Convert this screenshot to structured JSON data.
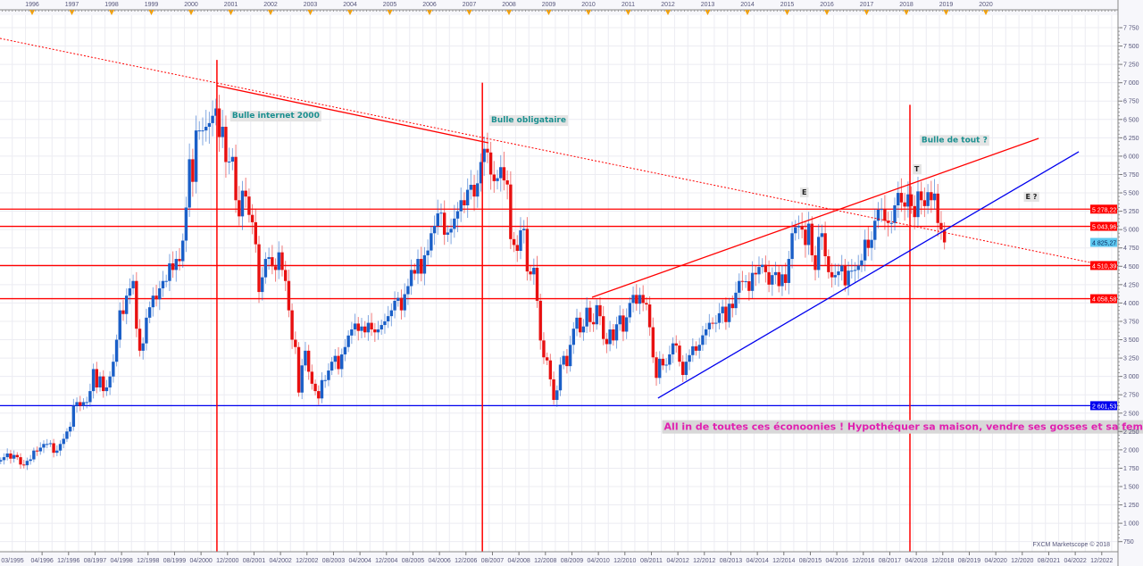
{
  "chart_data": {
    "type": "candlestick",
    "interval": "monthly",
    "start_month": "1995-03",
    "closes": [
      1860,
      1900,
      1950,
      1880,
      1930,
      1900,
      1800,
      1790,
      1850,
      1870,
      1990,
      1980,
      2030,
      2080,
      2080,
      2090,
      1960,
      1990,
      2080,
      2150,
      2250,
      2315,
      2600,
      2650,
      2600,
      2650,
      2650,
      2800,
      3100,
      2850,
      3000,
      2800,
      2850,
      2999,
      3200,
      3500,
      3900,
      3850,
      4100,
      4200,
      4300,
      3650,
      3350,
      3450,
      3800,
      3942,
      4100,
      4050,
      4200,
      4300,
      4300,
      4540,
      4450,
      4600,
      4570,
      4850,
      5300,
      5958,
      5650,
      6350,
      6350,
      6350,
      6400,
      6450,
      6550,
      6650,
      6260,
      6400,
      5920,
      5926,
      5990,
      5400,
      5180,
      5530,
      5450,
      5200,
      5100,
      4800,
      4150,
      4350,
      4600,
      4624,
      4500,
      4450,
      4690,
      4450,
      4300,
      3900,
      3500,
      3400,
      2780,
      3150,
      3350,
      3064,
      2900,
      2800,
      2700,
      2950,
      2950,
      3080,
      3200,
      3280,
      3100,
      3300,
      3400,
      3557,
      3640,
      3720,
      3620,
      3680,
      3600,
      3730,
      3640,
      3600,
      3640,
      3700,
      3750,
      3821,
      3900,
      4030,
      4070,
      3900,
      4120,
      4230,
      4450,
      4400,
      4600,
      4400,
      4650,
      4715,
      4950,
      5050,
      5220,
      5230,
      4930,
      4960,
      5010,
      5150,
      5250,
      5400,
      5330,
      5542,
      5610,
      5450,
      5630,
      5920,
      6100,
      6050,
      5750,
      5660,
      5700,
      5850,
      5670,
      5614,
      4870,
      4790,
      4710,
      4990,
      5010,
      4430,
      4390,
      4480,
      4030,
      3490,
      3260,
      3218,
      2960,
      2680,
      2810,
      3160,
      3280,
      3140,
      3430,
      3650,
      3800,
      3600,
      3680,
      3936,
      3740,
      3710,
      3970,
      3820,
      3510,
      3440,
      3640,
      3490,
      3710,
      3830,
      3610,
      3805,
      4000,
      4110,
      3990,
      4110,
      4000,
      3980,
      3670,
      3260,
      2980,
      3240,
      3150,
      3160,
      3300,
      3450,
      3420,
      3200,
      3020,
      3200,
      3290,
      3410,
      3350,
      3430,
      3560,
      3641,
      3730,
      3720,
      3730,
      3860,
      3950,
      3740,
      3990,
      3930,
      4140,
      4300,
      4290,
      4296,
      4165,
      4410,
      4390,
      4490,
      4520,
      4420,
      4250,
      4380,
      4420,
      4230,
      4390,
      4273,
      4600,
      4950,
      5030,
      5050,
      5000,
      4790,
      5080,
      4650,
      4450,
      4900,
      4950,
      4637,
      4420,
      4350,
      4380,
      4430,
      4510,
      4240,
      4440,
      4440,
      4450,
      4510,
      4580,
      4862,
      4750,
      4860,
      5120,
      5270,
      5280,
      5120,
      5090,
      5090,
      5330,
      5500,
      5370,
      5313,
      5480,
      5320,
      5170,
      5520,
      5400,
      5320,
      5510,
      5400,
      5490,
      5090,
      5000,
      4825.27
    ],
    "y_range": [
      750,
      7750
    ],
    "y_tick_step": 250,
    "y_ticks": [
      "750",
      "1 000",
      "1 250",
      "1 500",
      "1 750",
      "2 000",
      "2 250",
      "2 500",
      "2 750",
      "3 000",
      "3 250",
      "3 500",
      "3 750",
      "4 000",
      "4 250",
      "4 500",
      "4 750",
      "5 000",
      "5 250",
      "5 500",
      "5 750",
      "6 000",
      "6 250",
      "6 500",
      "6 750",
      "7 000",
      "7 250",
      "7 500",
      "7 750"
    ],
    "top_year_ticks": [
      "1996",
      "1997",
      "1998",
      "1999",
      "2000",
      "2001",
      "2002",
      "2003",
      "2004",
      "2005",
      "2006",
      "2007",
      "2008",
      "2009",
      "2010",
      "2011",
      "2012",
      "2013",
      "2014",
      "2015",
      "2016",
      "2017",
      "2018",
      "2019",
      "2020"
    ],
    "bottom_date_ticks": [
      "03/1995",
      "04/1996",
      "12/1996",
      "08/1997",
      "04/1998",
      "12/1998",
      "08/1999",
      "04/2000",
      "12/2000",
      "08/2001",
      "04/2002",
      "12/2002",
      "08/2003",
      "04/2004",
      "12/2004",
      "08/2005",
      "04/2006",
      "12/2006",
      "08/2007",
      "04/2008",
      "12/2008",
      "08/2009",
      "04/2010",
      "12/2010",
      "08/2011",
      "04/2012",
      "12/2012",
      "08/2013",
      "04/2014",
      "12/2014",
      "08/2015",
      "04/2016",
      "12/2016",
      "08/2017",
      "04/2018",
      "12/2018",
      "08/2019",
      "04/2020",
      "12/2020",
      "08/2021",
      "04/2022",
      "12/2022"
    ],
    "grid": true,
    "horizontal_levels": [
      {
        "value": 5278.22,
        "label": "5 278,22",
        "color": "#ff0000"
      },
      {
        "value": 5043.96,
        "label": "5 043,96",
        "color": "#ff0000"
      },
      {
        "value": 4510.39,
        "label": "4 510,39",
        "color": "#ff0000"
      },
      {
        "value": 4058.58,
        "label": "4 058,58",
        "color": "#ff0000"
      },
      {
        "value": 2601.53,
        "label": "2 601,53",
        "color": "#0000ee"
      }
    ],
    "current_price": {
      "value": 4825.27,
      "label": "4 825,27",
      "color": "#5ec8f0"
    },
    "vertical_lines": [
      {
        "date": 2000.65,
        "from_price": 7310
      },
      {
        "date": 2007.33,
        "from_price": 7000
      },
      {
        "date": 2018.09,
        "from_price": 6700
      }
    ],
    "trendlines": [
      {
        "from": [
          1995.19,
          7604
        ],
        "to": [
          2023.28,
          4479
        ],
        "color": "#ff0000",
        "style": "dotted"
      },
      {
        "from": [
          2000.65,
          6960
        ],
        "to": [
          2007.48,
          6181
        ],
        "color": "#ff0000",
        "style": "solid"
      },
      {
        "from": [
          2010.09,
          4078
        ],
        "to": [
          2021.33,
          6242
        ],
        "color": "#ff0000",
        "style": "solid"
      },
      {
        "from": [
          2011.75,
          2704
        ],
        "to": [
          2022.34,
          6060
        ],
        "color": "#0000ee",
        "style": "solid"
      }
    ],
    "annotations": [
      {
        "text": "Bulle internet 2000",
        "date": 2001.03,
        "price": 6520,
        "style": "ann"
      },
      {
        "text": "Bulle obligataire",
        "date": 2007.55,
        "price": 6460,
        "style": "ann"
      },
      {
        "text": "Bulle de tout ?",
        "date": 2018.38,
        "price": 6190,
        "style": "ann"
      },
      {
        "text": "E",
        "date": 2015.37,
        "price": 5476,
        "style": "mark"
      },
      {
        "text": "T",
        "date": 2018.2,
        "price": 5792,
        "style": "mark"
      },
      {
        "text": "E ?",
        "date": 2021.0,
        "price": 5415,
        "style": "mark"
      },
      {
        "text": "All in de toutes ces éconoonies ! Hypothéquer sa maison, vendre ses gosses et sa femme !",
        "date": 2011.9,
        "price": 2270,
        "style": "pink"
      }
    ],
    "colors": {
      "up": "#1a5fc8",
      "down": "#e81010",
      "grid": "#ececf2"
    }
  },
  "watermark": "FXCM Marketscope © 2018"
}
